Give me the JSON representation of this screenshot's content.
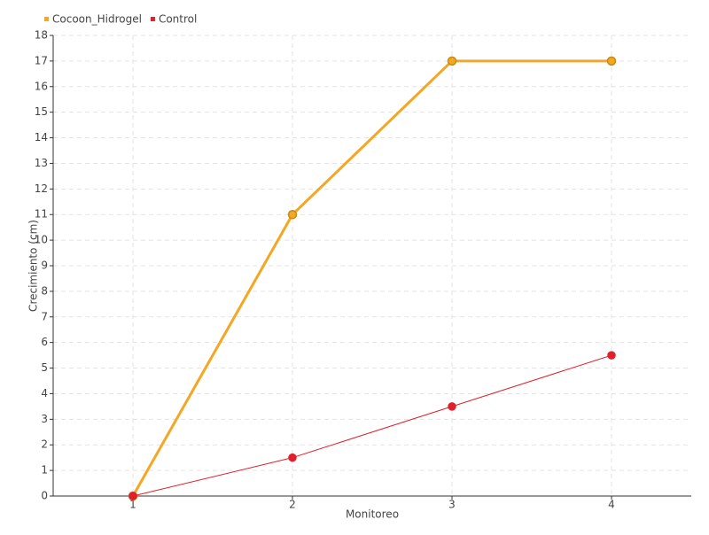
{
  "chart_data": {
    "type": "line",
    "categories": [
      "1",
      "2",
      "3",
      "4"
    ],
    "series": [
      {
        "name": "Cocoon_Hidrogel",
        "color": "#f5a623",
        "values": [
          0,
          11,
          17,
          17
        ]
      },
      {
        "name": "Control",
        "color": "#e0202a",
        "values": [
          0,
          1.5,
          3.5,
          5.5
        ]
      }
    ],
    "x_label": "Monitoreo",
    "y_label": "Crecimiento (cm)",
    "ylim": [
      0,
      18
    ],
    "yticks": [
      0,
      1,
      2,
      3,
      4,
      5,
      6,
      7,
      8,
      9,
      10,
      11,
      12,
      13,
      14,
      15,
      16,
      17,
      18
    ],
    "grid": true,
    "legend": "top-left"
  }
}
